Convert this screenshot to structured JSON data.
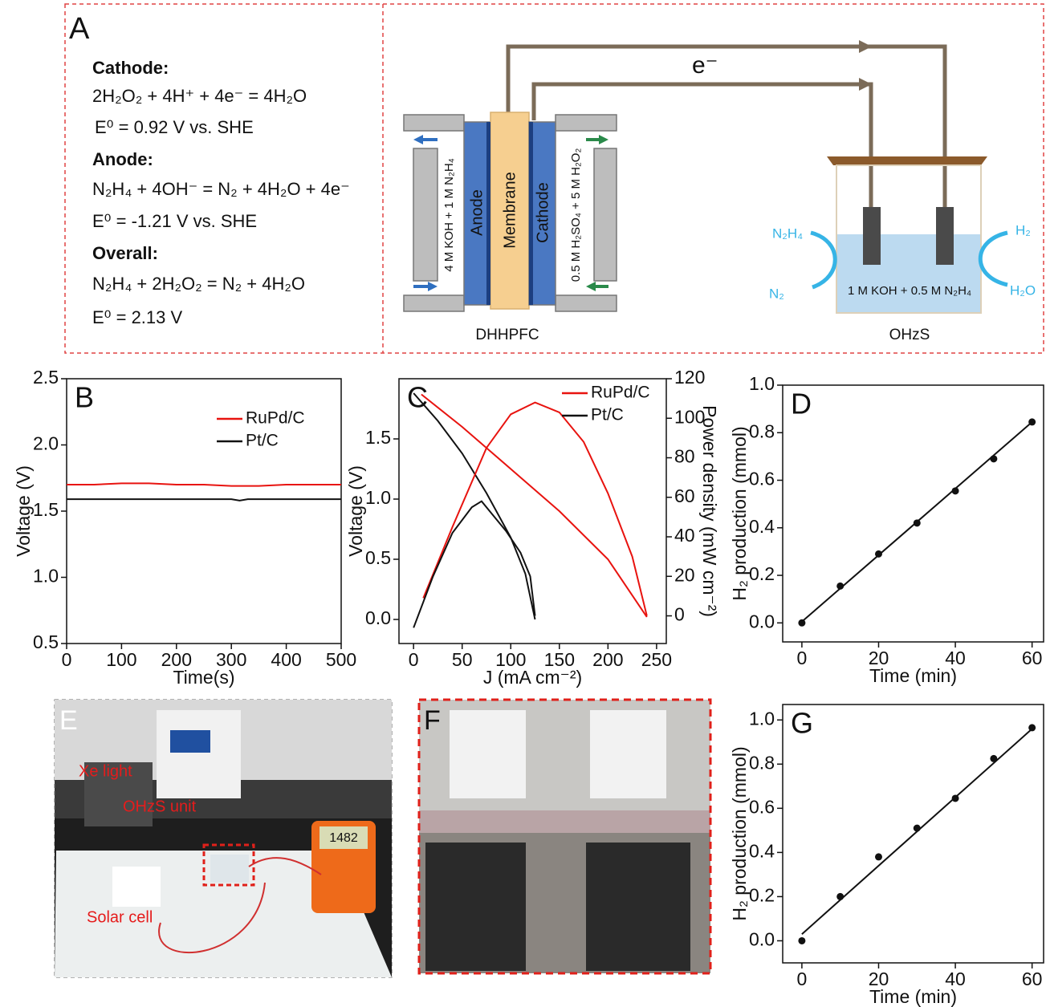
{
  "panel_a": {
    "letter": "A",
    "lines": [
      "Cathode:",
      "2H₂O₂ + 4H⁺ + 4e⁻ = 4H₂O",
      "E⁰ = 0.92 V vs. SHE",
      "Anode:",
      "N₂H₄ + 4OH⁻ = N₂ + 4H₂O + 4e⁻",
      "E⁰ = -1.21 V vs. SHE",
      "Overall:",
      "N₂H₄ + 2H₂O₂ = N₂ + 4H₂O",
      "E⁰ = 2.13 V"
    ]
  },
  "diagram": {
    "electron": "e⁻",
    "anode": "Anode",
    "membrane": "Membrane",
    "cathode": "Cathode",
    "anolyte": "4 M KOH + 1 M N₂H₄",
    "catholyte": "0.5 M H₂SO₄ + 5 M H₂O₂",
    "cell_name": "DHHPFC",
    "in_left": "N₂H₄",
    "out_left": "N₂",
    "out_right_top": "H₂",
    "out_right_bottom": "H₂O",
    "electrolyte": "1 M KOH + 0.5 M N₂H₄",
    "unit_name": "OHzS"
  },
  "photo_e": {
    "letter": "E",
    "labels": [
      "Xe light",
      "OHzS unit",
      "Solar cell"
    ],
    "meter": "1482"
  },
  "photo_f": {
    "letter": "F"
  },
  "chart_data": [
    {
      "type": "line",
      "title": "B",
      "xlabel": "Time(s)",
      "ylabel": "Voltage (V)",
      "xlim": [
        0,
        500
      ],
      "xticks": [
        0,
        100,
        200,
        300,
        400,
        500
      ],
      "ylim": [
        0.5,
        2.5
      ],
      "yticks": [
        0.5,
        {
          "value": 1,
          "label": "1.0"
        },
        1.5,
        {
          "value": 2,
          "label": "2.0"
        },
        2.5
      ],
      "legend": "upper right",
      "series": [
        {
          "name": "RuPd/C",
          "color": "#e8130f",
          "x": [
            0,
            50,
            100,
            150,
            200,
            250,
            300,
            350,
            400,
            450,
            500
          ],
          "values": [
            1.7,
            1.7,
            1.71,
            1.71,
            1.7,
            1.7,
            1.69,
            1.69,
            1.7,
            1.7,
            1.7
          ]
        },
        {
          "name": "Pt/C",
          "color": "#111111",
          "x": [
            0,
            50,
            100,
            150,
            200,
            250,
            300,
            315,
            330,
            400,
            450,
            500
          ],
          "values": [
            1.59,
            1.59,
            1.59,
            1.59,
            1.59,
            1.59,
            1.59,
            1.58,
            1.59,
            1.59,
            1.59,
            1.59
          ]
        }
      ]
    },
    {
      "type": "line",
      "title": "C",
      "xlabel": "J (mA cm⁻²)",
      "ylabel": "Voltage (V)",
      "y2label": "Power density (mW cm⁻²)",
      "xlim": [
        -15,
        260
      ],
      "xticks": [
        0,
        50,
        100,
        150,
        200,
        250
      ],
      "ylim": [
        -0.2,
        2.0
      ],
      "yticks": [
        {
          "value": 0,
          "label": "0.0"
        },
        0.5,
        {
          "value": 1,
          "label": "1.0"
        },
        1.5
      ],
      "y2lim": [
        -14,
        120
      ],
      "y2ticks": [
        0,
        20,
        40,
        60,
        80,
        100,
        120
      ],
      "legend": "upper right",
      "series": [
        {
          "name": "RuPd/C",
          "color": "#e8130f",
          "x": [
            8,
            50,
            100,
            150,
            200,
            240
          ],
          "values": [
            1.87,
            1.6,
            1.25,
            0.9,
            0.5,
            0.02
          ]
        },
        {
          "name": "Pt/C",
          "color": "#111111",
          "x": [
            0,
            25,
            50,
            75,
            100,
            115,
            125
          ],
          "values": [
            1.88,
            1.65,
            1.38,
            1.05,
            0.68,
            0.38,
            0.0
          ]
        },
        {
          "color": "#e8130f",
          "axis": "y2",
          "x": [
            10,
            40,
            75,
            100,
            125,
            150,
            175,
            200,
            225,
            240
          ],
          "values": [
            9,
            45,
            85,
            102,
            108,
            103,
            88,
            62,
            30,
            0
          ]
        },
        {
          "color": "#111111",
          "axis": "y2",
          "x": [
            0,
            20,
            40,
            60,
            70,
            80,
            95,
            110,
            120,
            125
          ],
          "values": [
            -6,
            20,
            42,
            55,
            58,
            52,
            43,
            32,
            20,
            0
          ]
        }
      ]
    },
    {
      "type": "scatter",
      "title": "D",
      "xlabel": "Time (min)",
      "ylabel": "H₂ production (mmol)",
      "xlim": [
        -5,
        63
      ],
      "xticks": [
        0,
        20,
        40,
        60
      ],
      "ylim": [
        -0.08,
        1.0
      ],
      "yticks": [
        {
          "value": 0,
          "label": "0.0"
        },
        0.2,
        0.4,
        0.6,
        0.8,
        {
          "value": 1,
          "label": "1.0"
        }
      ],
      "color": "#111111",
      "x": [
        0,
        10,
        20,
        30,
        40,
        50,
        60
      ],
      "values": [
        0.0,
        0.155,
        0.29,
        0.42,
        0.555,
        0.69,
        0.845
      ],
      "fit": {
        "x": [
          0,
          60
        ],
        "values": [
          0.005,
          0.845
        ]
      }
    },
    {
      "type": "scatter",
      "title": "G",
      "xlabel": "Time (min)",
      "ylabel": "H₂ production (mmol)",
      "xlim": [
        -5,
        63
      ],
      "xticks": [
        0,
        20,
        40,
        60
      ],
      "ylim": [
        -0.1,
        1.07
      ],
      "yticks": [
        {
          "value": 0,
          "label": "0.0"
        },
        0.2,
        0.4,
        0.6,
        0.8,
        {
          "value": 1,
          "label": "1.0"
        }
      ],
      "color": "#111111",
      "x": [
        0,
        10,
        20,
        30,
        40,
        50,
        60
      ],
      "values": [
        0.0,
        0.2,
        0.38,
        0.51,
        0.645,
        0.825,
        0.965
      ],
      "fit": {
        "x": [
          0,
          60
        ],
        "values": [
          0.03,
          0.96
        ]
      }
    }
  ]
}
